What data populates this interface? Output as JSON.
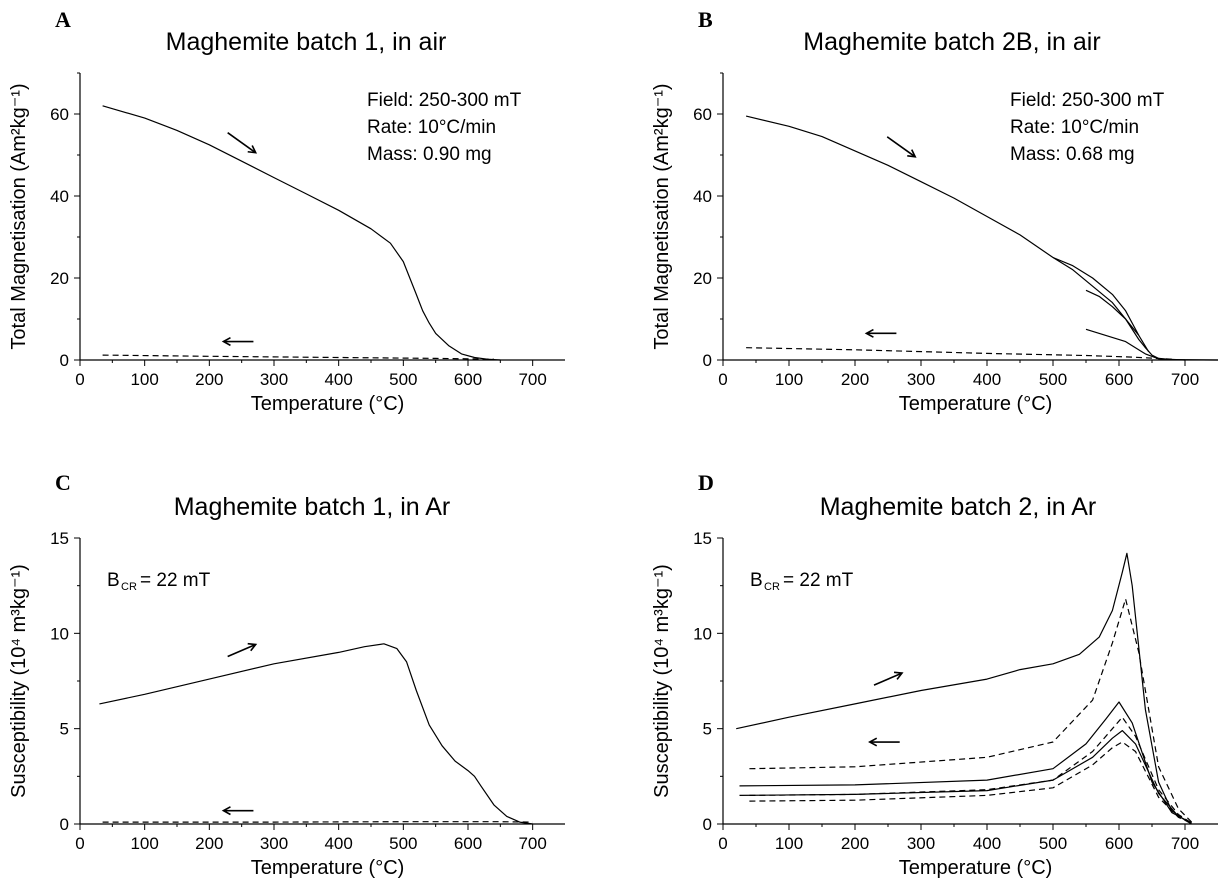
{
  "chart_data": [
    {
      "type": "line",
      "panel": "A",
      "title": "Maghemite batch 1, in air",
      "xlabel": "Temperature (°C)",
      "ylabel": "Total Magnetisation (Am²kg⁻¹)",
      "xlim": [
        0,
        750
      ],
      "ylim": [
        0,
        70
      ],
      "xticks": [
        0,
        100,
        200,
        300,
        400,
        500,
        600,
        700
      ],
      "yticks": [
        0,
        20,
        40,
        60
      ],
      "annotations": [
        "Field: 250-300 mT",
        "Rate: 10°C/min",
        "Mass: 0.90 mg"
      ],
      "arrows": [
        {
          "direction": "heating",
          "x": 250,
          "y": 53
        },
        {
          "direction": "cooling",
          "x": 245,
          "y": 4.5
        }
      ],
      "series": [
        {
          "style": "solid",
          "x": [
            35,
            100,
            150,
            200,
            250,
            300,
            350,
            400,
            450,
            480,
            500,
            510,
            520,
            525,
            530,
            540,
            550,
            570,
            590,
            610,
            630,
            650
          ],
          "y": [
            62,
            59,
            56,
            52.5,
            48.5,
            44.5,
            40.5,
            36.5,
            32,
            28.5,
            24,
            20,
            16,
            14,
            12,
            9,
            6.5,
            3.5,
            1.5,
            0.6,
            0.2,
            0
          ]
        },
        {
          "style": "dashed",
          "x": [
            35,
            200,
            400,
            550,
            640
          ],
          "y": [
            1.2,
            0.9,
            0.6,
            0.4,
            0.2
          ]
        }
      ]
    },
    {
      "type": "line",
      "panel": "B",
      "title": "Maghemite batch 2B, in air",
      "xlabel": "Temperature (°C)",
      "ylabel": "Total Magnetisation (Am²kg⁻¹)",
      "xlim": [
        0,
        750
      ],
      "ylim": [
        0,
        70
      ],
      "xticks": [
        0,
        100,
        200,
        300,
        400,
        500,
        600,
        700
      ],
      "yticks": [
        0,
        20,
        40,
        60
      ],
      "annotations": [
        "Field: 250-300 mT",
        "Rate: 10°C/min",
        "Mass: 0.68 mg"
      ],
      "arrows": [
        {
          "direction": "heating",
          "x": 270,
          "y": 52
        },
        {
          "direction": "cooling",
          "x": 240,
          "y": 6.5
        }
      ],
      "series": [
        {
          "style": "solid",
          "x": [
            35,
            100,
            150,
            200,
            250,
            300,
            350,
            400,
            450,
            500,
            530,
            560,
            590,
            610,
            630,
            640,
            650,
            660,
            680,
            750
          ],
          "y": [
            59.5,
            57,
            54.5,
            51,
            47.5,
            43.5,
            39.5,
            35,
            30.5,
            25,
            22,
            18,
            14,
            10,
            5,
            3,
            1.2,
            0.4,
            0.1,
            0
          ]
        },
        {
          "style": "solid",
          "x": [
            500,
            530,
            560,
            590,
            610,
            630
          ],
          "y": [
            25,
            23,
            20,
            16,
            12,
            6
          ]
        },
        {
          "style": "solid",
          "x": [
            550,
            570,
            590,
            610,
            630,
            645
          ],
          "y": [
            17,
            15.5,
            13,
            10,
            6,
            2
          ]
        },
        {
          "style": "solid",
          "x": [
            550,
            580,
            610,
            640,
            660,
            700
          ],
          "y": [
            7.5,
            6,
            4.5,
            1.5,
            0.3,
            0
          ]
        },
        {
          "style": "dashed",
          "x": [
            35,
            200,
            400,
            550,
            620,
            680
          ],
          "y": [
            3,
            2.5,
            1.6,
            1.1,
            0.7,
            0.2
          ]
        }
      ]
    },
    {
      "type": "line",
      "panel": "C",
      "title": "Maghemite batch 1, in Ar",
      "xlabel": "Temperature (°C)",
      "ylabel": "Susceptibility (10⁴ m³kg⁻¹)",
      "xlim": [
        0,
        750
      ],
      "ylim": [
        0,
        15
      ],
      "xticks": [
        0,
        100,
        200,
        300,
        400,
        500,
        600,
        700
      ],
      "yticks": [
        0,
        5,
        10,
        15
      ],
      "annotations": [
        "B",
        "CR",
        "= 22 mT"
      ],
      "arrows": [
        {
          "direction": "heating",
          "x": 250,
          "y": 9.1
        },
        {
          "direction": "cooling",
          "x": 245,
          "y": 0.7
        }
      ],
      "series": [
        {
          "style": "solid",
          "x": [
            30,
            100,
            200,
            300,
            400,
            440,
            470,
            490,
            505,
            520,
            540,
            560,
            580,
            600,
            610,
            620,
            640,
            660,
            680,
            700
          ],
          "y": [
            6.3,
            6.8,
            7.6,
            8.4,
            9.0,
            9.3,
            9.45,
            9.2,
            8.5,
            7.0,
            5.2,
            4.1,
            3.3,
            2.8,
            2.5,
            2.0,
            1.0,
            0.4,
            0.1,
            0
          ]
        },
        {
          "style": "dashed",
          "x": [
            35,
            300,
            500,
            650,
            700
          ],
          "y": [
            0.1,
            0.1,
            0.12,
            0.12,
            0.1
          ]
        }
      ]
    },
    {
      "type": "line",
      "panel": "D",
      "title": "Maghemite batch 2, in Ar",
      "xlabel": "Temperature (°C)",
      "ylabel": "Susceptibility (10⁴ m³kg⁻¹)",
      "xlim": [
        0,
        750
      ],
      "ylim": [
        0,
        15
      ],
      "xticks": [
        0,
        100,
        200,
        300,
        400,
        500,
        600,
        700
      ],
      "yticks": [
        0,
        5,
        10,
        15
      ],
      "annotations": [
        "B",
        "CR",
        "= 22 mT"
      ],
      "arrows": [
        {
          "direction": "heating",
          "x": 250,
          "y": 7.6
        },
        {
          "direction": "cooling",
          "x": 245,
          "y": 4.3
        }
      ],
      "series": [
        {
          "style": "solid",
          "x": [
            20,
            100,
            200,
            300,
            400,
            450,
            500,
            540,
            570,
            590,
            605,
            612,
            620,
            640,
            660,
            680,
            700,
            710
          ],
          "y": [
            5.0,
            5.6,
            6.3,
            7.0,
            7.6,
            8.1,
            8.4,
            8.9,
            9.8,
            11.2,
            13.2,
            14.2,
            12.5,
            6.0,
            2.2,
            0.7,
            0.2,
            0
          ]
        },
        {
          "style": "dashed",
          "x": [
            40,
            200,
            400,
            500,
            560,
            590,
            610,
            630,
            660,
            690,
            710
          ],
          "y": [
            2.9,
            3.0,
            3.5,
            4.3,
            6.5,
            9.5,
            11.8,
            9.0,
            3.0,
            0.8,
            0.1
          ]
        },
        {
          "style": "solid",
          "x": [
            25,
            200,
            400,
            500,
            550,
            580,
            600,
            620,
            650,
            680,
            710
          ],
          "y": [
            2.0,
            2.05,
            2.3,
            2.9,
            4.2,
            5.5,
            6.4,
            5.3,
            2.2,
            0.6,
            0.05
          ]
        },
        {
          "style": "dashed",
          "x": [
            40,
            200,
            400,
            500,
            560,
            590,
            605,
            625,
            660,
            690,
            710
          ],
          "y": [
            1.5,
            1.55,
            1.8,
            2.3,
            3.8,
            5.0,
            5.6,
            4.6,
            1.8,
            0.5,
            0.05
          ]
        },
        {
          "style": "solid",
          "x": [
            25,
            200,
            400,
            500,
            560,
            590,
            605,
            625,
            660,
            690,
            710
          ],
          "y": [
            1.5,
            1.55,
            1.75,
            2.3,
            3.5,
            4.5,
            4.9,
            4.2,
            1.6,
            0.4,
            0.05
          ]
        },
        {
          "style": "dashed",
          "x": [
            40,
            200,
            400,
            500,
            560,
            590,
            605,
            625,
            660,
            690,
            710
          ],
          "y": [
            1.2,
            1.25,
            1.5,
            1.9,
            3.1,
            4.0,
            4.3,
            3.8,
            1.4,
            0.35,
            0.05
          ]
        }
      ]
    }
  ]
}
